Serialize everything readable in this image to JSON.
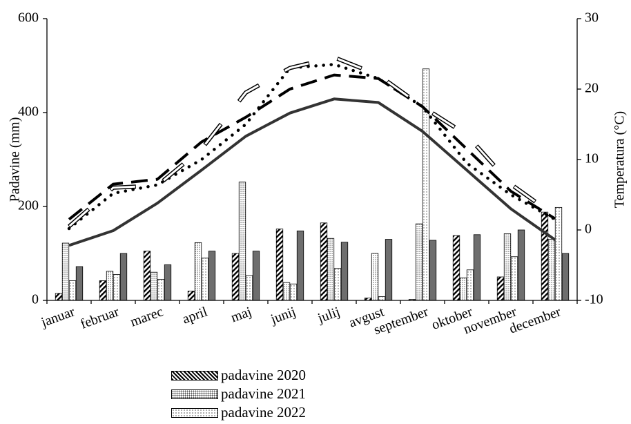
{
  "chart_data": {
    "type": "bar",
    "categories": [
      "januar",
      "februar",
      "marec",
      "april",
      "maj",
      "junij",
      "julij",
      "avgust",
      "september",
      "oktober",
      "november",
      "december"
    ],
    "ylabel": "Padavine (mm)",
    "y2label": "Temperatura (°C)",
    "ylim": [
      0,
      600
    ],
    "y2lim": [
      -10,
      30
    ],
    "yticks": [
      "0",
      "200",
      "400",
      "600"
    ],
    "y2ticks": [
      "-10",
      "0",
      "10",
      "20",
      "30"
    ],
    "grid": false,
    "legend_position": "bottom",
    "series": [
      {
        "name": "padavine 2020",
        "type": "bar",
        "axis": "left",
        "pattern": "diag",
        "values": [
          15,
          42,
          105,
          20,
          100,
          152,
          165,
          5,
          2,
          138,
          50,
          188
        ]
      },
      {
        "name": "padavine 2021",
        "type": "bar",
        "axis": "left",
        "pattern": "dense-dots",
        "values": [
          122,
          62,
          60,
          123,
          252,
          38,
          132,
          100,
          163,
          48,
          142,
          130
        ]
      },
      {
        "name": "padavine 2022",
        "type": "bar",
        "axis": "left",
        "pattern": "sparse-dots",
        "values": [
          42,
          55,
          45,
          90,
          53,
          35,
          68,
          8,
          493,
          65,
          93,
          198
        ]
      },
      {
        "type": "bar",
        "axis": "left",
        "pattern": "solid-gray",
        "values": [
          72,
          100,
          76,
          105,
          105,
          148,
          124,
          130,
          128,
          140,
          150,
          100
        ]
      },
      {
        "type": "line",
        "axis": "right",
        "style": "solid",
        "values": [
          -2.2,
          -0.1,
          3.8,
          8.5,
          13.3,
          16.6,
          18.6,
          18.1,
          14.0,
          8.5,
          3.0,
          -1.4
        ]
      },
      {
        "type": "line",
        "axis": "right",
        "style": "long-dash",
        "values": [
          1.5,
          6.5,
          7.2,
          12.5,
          16.0,
          20.0,
          22.0,
          21.5,
          17.5,
          11.5,
          5.5,
          1.6
        ]
      },
      {
        "type": "line",
        "axis": "right",
        "style": "dotted",
        "values": [
          0.2,
          5.2,
          6.4,
          10.0,
          15.0,
          23.0,
          23.5,
          21.5,
          17.5,
          9.5,
          5.0,
          1.5
        ]
      },
      {
        "type": "line",
        "axis": "right",
        "style": "hollow-dash",
        "values": [
          0.5,
          6.0,
          6.3,
          11.5,
          19.5,
          23.0,
          24.5,
          22.0,
          17.5,
          13.5,
          6.5,
          2.0
        ]
      }
    ]
  }
}
